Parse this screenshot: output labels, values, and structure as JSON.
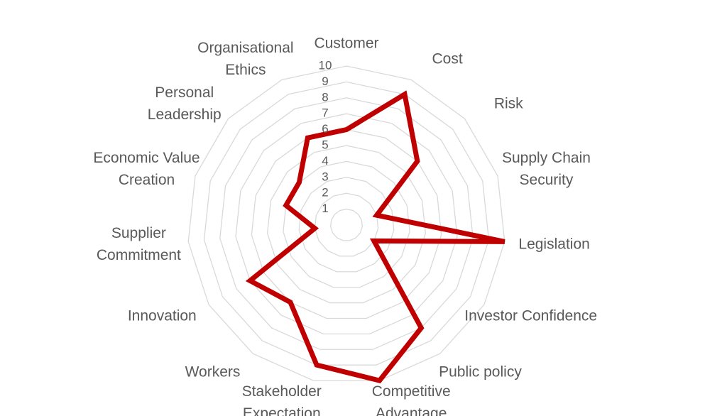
{
  "chart_data": {
    "type": "radar",
    "categories": [
      "Customer",
      "Cost",
      "Risk",
      "Supply Chain Security",
      "Legislation",
      "Investor Confidence",
      "Public policy",
      "Competitive Advantage",
      "Stakeholder Expectation",
      "Workers",
      "Innovation",
      "Supplier Commitment",
      "Economic Value Creation",
      "Personal Leadership",
      "Organisational Ethics"
    ],
    "values": [
      6,
      9,
      6,
      2,
      10,
      2,
      8,
      10,
      9,
      6,
      7,
      2,
      4,
      4,
      6
    ],
    "color": "#c00000",
    "rlim": [
      0,
      10
    ],
    "rticks": [
      1,
      2,
      3,
      4,
      5,
      6,
      7,
      8,
      9,
      10
    ],
    "grid": true
  }
}
